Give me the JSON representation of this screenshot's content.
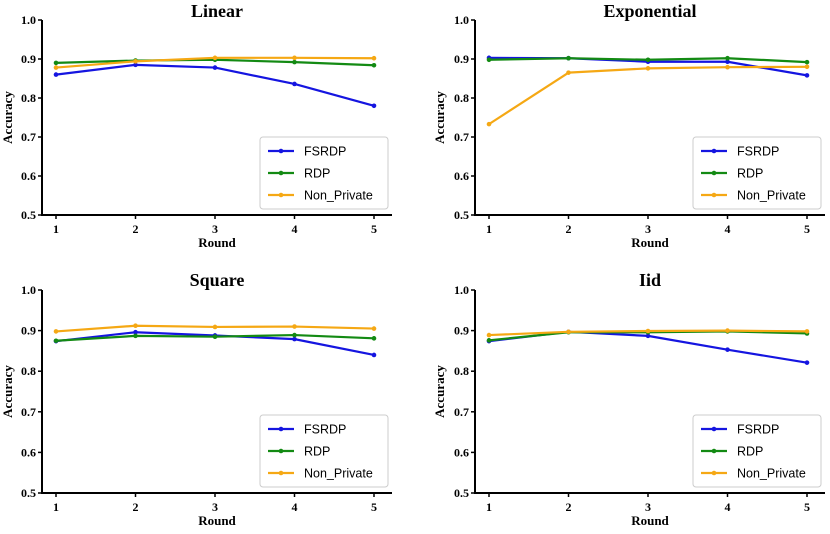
{
  "colors": {
    "FSRDP": "#1515e0",
    "RDP": "#138a13",
    "Non_Private": "#f5a814"
  },
  "chart_data": [
    {
      "type": "line",
      "title": "Linear",
      "xlabel": "Round",
      "ylabel": "Accuracy",
      "x": [
        1,
        2,
        3,
        4,
        5
      ],
      "x_ticks": [
        "1",
        "2",
        "3",
        "4",
        "5"
      ],
      "ylim": [
        0.5,
        1.0
      ],
      "y_ticks": [
        "0.5",
        "0.6",
        "0.7",
        "0.8",
        "0.9",
        "1.0"
      ],
      "legend_position": "lower-right",
      "series": [
        {
          "name": "FSRDP",
          "values": [
            0.86,
            0.885,
            0.878,
            0.836,
            0.78
          ]
        },
        {
          "name": "RDP",
          "values": [
            0.89,
            0.896,
            0.898,
            0.892,
            0.884
          ]
        },
        {
          "name": "Non_Private",
          "values": [
            0.878,
            0.894,
            0.903,
            0.903,
            0.902
          ]
        }
      ]
    },
    {
      "type": "line",
      "title": "Exponential",
      "xlabel": "Round",
      "ylabel": "Accuracy",
      "x": [
        1,
        2,
        3,
        4,
        5
      ],
      "x_ticks": [
        "1",
        "2",
        "3",
        "4",
        "5"
      ],
      "ylim": [
        0.5,
        1.0
      ],
      "y_ticks": [
        "0.5",
        "0.6",
        "0.7",
        "0.8",
        "0.9",
        "1.0"
      ],
      "legend_position": "lower-right",
      "series": [
        {
          "name": "FSRDP",
          "values": [
            0.903,
            0.902,
            0.893,
            0.893,
            0.858
          ]
        },
        {
          "name": "RDP",
          "values": [
            0.898,
            0.902,
            0.898,
            0.902,
            0.892
          ]
        },
        {
          "name": "Non_Private",
          "values": [
            0.733,
            0.865,
            0.876,
            0.879,
            0.88
          ]
        }
      ]
    },
    {
      "type": "line",
      "title": "Square",
      "xlabel": "Round",
      "ylabel": "Accuracy",
      "x": [
        1,
        2,
        3,
        4,
        5
      ],
      "x_ticks": [
        "1",
        "2",
        "3",
        "4",
        "5"
      ],
      "ylim": [
        0.5,
        1.0
      ],
      "y_ticks": [
        "0.5",
        "0.6",
        "0.7",
        "0.8",
        "0.9",
        "1.0"
      ],
      "legend_position": "lower-right",
      "series": [
        {
          "name": "FSRDP",
          "values": [
            0.874,
            0.896,
            0.888,
            0.879,
            0.84
          ]
        },
        {
          "name": "RDP",
          "values": [
            0.875,
            0.887,
            0.885,
            0.889,
            0.881
          ]
        },
        {
          "name": "Non_Private",
          "values": [
            0.898,
            0.912,
            0.909,
            0.91,
            0.905
          ]
        }
      ]
    },
    {
      "type": "line",
      "title": "Iid",
      "xlabel": "Round",
      "ylabel": "Accuracy",
      "x": [
        1,
        2,
        3,
        4,
        5
      ],
      "x_ticks": [
        "1",
        "2",
        "3",
        "4",
        "5"
      ],
      "ylim": [
        0.5,
        1.0
      ],
      "y_ticks": [
        "0.5",
        "0.6",
        "0.7",
        "0.8",
        "0.9",
        "1.0"
      ],
      "legend_position": "lower-right",
      "series": [
        {
          "name": "FSRDP",
          "values": [
            0.874,
            0.897,
            0.887,
            0.853,
            0.821
          ]
        },
        {
          "name": "RDP",
          "values": [
            0.876,
            0.896,
            0.896,
            0.898,
            0.893
          ]
        },
        {
          "name": "Non_Private",
          "values": [
            0.889,
            0.897,
            0.899,
            0.9,
            0.898
          ]
        }
      ]
    }
  ]
}
